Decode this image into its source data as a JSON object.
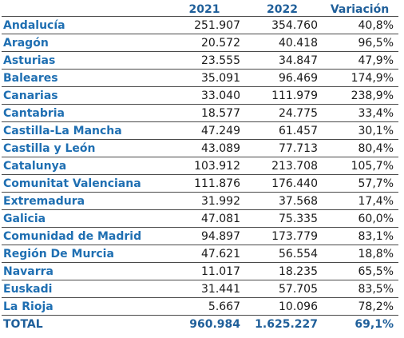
{
  "table": {
    "headers": [
      "",
      "2021",
      "2022",
      "Variación"
    ],
    "rows": [
      {
        "region": "Andalucía",
        "y2021": "251.907",
        "y2022": "354.760",
        "variation": "40,8%"
      },
      {
        "region": "Aragón",
        "y2021": "20.572",
        "y2022": "40.418",
        "variation": "96,5%"
      },
      {
        "region": "Asturias",
        "y2021": "23.555",
        "y2022": "34.847",
        "variation": "47,9%"
      },
      {
        "region": "Baleares",
        "y2021": "35.091",
        "y2022": "96.469",
        "variation": "174,9%"
      },
      {
        "region": "Canarias",
        "y2021": "33.040",
        "y2022": "111.979",
        "variation": "238,9%"
      },
      {
        "region": "Cantabria",
        "y2021": "18.577",
        "y2022": "24.775",
        "variation": "33,4%"
      },
      {
        "region": "Castilla-La Mancha",
        "y2021": "47.249",
        "y2022": "61.457",
        "variation": "30,1%"
      },
      {
        "region": "Castilla y León",
        "y2021": "43.089",
        "y2022": "77.713",
        "variation": "80,4%"
      },
      {
        "region": "Catalunya",
        "y2021": "103.912",
        "y2022": "213.708",
        "variation": "105,7%"
      },
      {
        "region": "Comunitat Valenciana",
        "y2021": "111.876",
        "y2022": "176.440",
        "variation": "57,7%"
      },
      {
        "region": "Extremadura",
        "y2021": "31.992",
        "y2022": "37.568",
        "variation": "17,4%"
      },
      {
        "region": "Galicia",
        "y2021": "47.081",
        "y2022": "75.335",
        "variation": "60,0%"
      },
      {
        "region": "Comunidad de Madrid",
        "y2021": "94.897",
        "y2022": "173.779",
        "variation": "83,1%"
      },
      {
        "region": "Región De Murcia",
        "y2021": "47.621",
        "y2022": "56.554",
        "variation": "18,8%"
      },
      {
        "region": "Navarra",
        "y2021": "11.017",
        "y2022": "18.235",
        "variation": "65,5%"
      },
      {
        "region": "Euskadi",
        "y2021": "31.441",
        "y2022": "57.705",
        "variation": "83,5%"
      },
      {
        "region": "La Rioja",
        "y2021": "5.667",
        "y2022": "10.096",
        "variation": "78,2%"
      }
    ],
    "total": {
      "region": "TOTAL",
      "y2021": "960.984",
      "y2022": "1.625.227",
      "variation": "69,1%"
    }
  },
  "colors": {
    "header_text": "#1f5f9a",
    "region_text": "#1f6fb2",
    "cell_text": "#1a1a1a",
    "rule": "#4a4a4a"
  }
}
